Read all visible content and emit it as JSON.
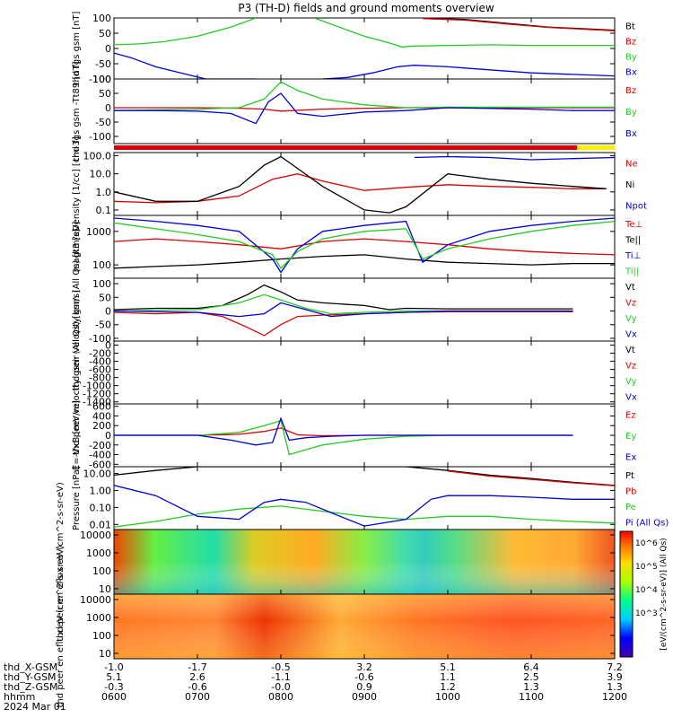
{
  "title": "P3 (TH-D) fields and ground moments overview",
  "date_label": "2024 Mar 01",
  "colors": {
    "black": "#000000",
    "red": "#dd0000",
    "green": "#22cc22",
    "blue": "#0000dd",
    "yellow": "#ffee00"
  },
  "chart_data": [
    {
      "type": "line",
      "ylabel": "thd fgs gsm [nT]",
      "ylim": [
        -100,
        100
      ],
      "ticks": [
        "100",
        "50",
        "0",
        "-50",
        "-100"
      ],
      "tick_values": [
        100,
        50,
        0,
        -50,
        -100
      ],
      "series": [
        {
          "name": "Bt",
          "color": "#000000",
          "x": [
            6.0,
            9.3,
            9.7,
            10.2,
            10.8,
            11.2,
            12.0
          ],
          "y": [
            null,
            null,
            100,
            95,
            80,
            70,
            60
          ]
        },
        {
          "name": "Bz",
          "color": "#dd0000",
          "x": [
            6.0,
            9.3,
            9.7,
            10.2,
            10.8,
            11.2,
            12.0
          ],
          "y": [
            null,
            null,
            98,
            93,
            78,
            69,
            58
          ]
        },
        {
          "name": "By",
          "color": "#22cc22",
          "x": [
            6.0,
            6.3,
            6.6,
            7.0,
            7.4,
            7.7,
            7.9,
            8.4,
            8.7,
            9.0,
            9.3,
            9.45,
            9.6,
            10.0,
            10.5,
            11.0,
            11.5,
            12.0
          ],
          "y": [
            12,
            15,
            22,
            40,
            70,
            100,
            null,
            100,
            70,
            40,
            18,
            5,
            8,
            10,
            12,
            10,
            10,
            10
          ]
        },
        {
          "name": "Bx",
          "color": "#0000dd",
          "x": [
            6.0,
            6.2,
            6.5,
            6.8,
            7.1,
            7.4,
            7.7,
            7.9,
            8.5,
            8.8,
            9.1,
            9.4,
            9.6,
            10.0,
            10.5,
            11.0,
            11.5,
            12.0
          ],
          "y": [
            -15,
            -30,
            -60,
            -80,
            -100,
            -100,
            -100,
            null,
            -100,
            -95,
            -80,
            -60,
            -55,
            -60,
            -70,
            -80,
            -85,
            -90
          ]
        }
      ],
      "labels": [
        "Bt",
        "Bz",
        "By",
        "Bx"
      ]
    },
    {
      "type": "line",
      "ylabel": "thd fgs gsm -Tt89 [nT]",
      "ylim": [
        -125,
        100
      ],
      "ticks": [
        "100",
        "50",
        "0",
        "-50",
        "-100"
      ],
      "tick_values": [
        100,
        50,
        0,
        -50,
        -100
      ],
      "series": [
        {
          "name": "Bz",
          "color": "#dd0000",
          "x": [
            6.0,
            7.0,
            7.5,
            7.8,
            8.0,
            8.5,
            9.0,
            9.5,
            10.0,
            11.0,
            12.0
          ],
          "y": [
            0,
            0,
            -2,
            -5,
            -12,
            -5,
            -2,
            0,
            0,
            0,
            0
          ]
        },
        {
          "name": "By",
          "color": "#22cc22",
          "x": [
            6.0,
            7.0,
            7.5,
            7.8,
            7.9,
            8.0,
            8.2,
            8.5,
            9.0,
            9.5,
            10.0,
            11.0,
            12.0
          ],
          "y": [
            -10,
            -5,
            0,
            30,
            60,
            90,
            60,
            30,
            10,
            0,
            2,
            2,
            2
          ]
        },
        {
          "name": "Bx",
          "color": "#0000dd",
          "x": [
            6.0,
            6.5,
            7.0,
            7.4,
            7.7,
            7.85,
            8.0,
            8.2,
            8.5,
            9.0,
            9.5,
            10.0,
            11.0,
            11.5,
            12.0
          ],
          "y": [
            -10,
            -10,
            -12,
            -20,
            -55,
            20,
            50,
            -20,
            -30,
            -15,
            -10,
            0,
            -5,
            -10,
            -10
          ]
        }
      ],
      "labels": [
        "Bz",
        "By",
        "Bx"
      ]
    },
    {
      "type": "line",
      "ylabel": "Density [1/cc] [cm-3]",
      "yscale": "log",
      "ylim": [
        0.05,
        150
      ],
      "ticks": [
        "100.0",
        "10.0",
        "1.0",
        "0.1"
      ],
      "tick_values": [
        100,
        10,
        1,
        0.1
      ],
      "series": [
        {
          "name": "Ne",
          "color": "#dd0000",
          "x": [
            6.0,
            6.5,
            7.0,
            7.5,
            7.9,
            8.2,
            8.5,
            9.0,
            9.5,
            10.0,
            10.5,
            11.0,
            11.5,
            11.9
          ],
          "y": [
            0.3,
            0.25,
            0.3,
            0.6,
            5,
            10,
            4,
            1.2,
            1.8,
            2.5,
            2.0,
            1.8,
            1.5,
            1.5
          ]
        },
        {
          "name": "Ni",
          "color": "#000000",
          "x": [
            6.0,
            6.5,
            7.0,
            7.5,
            7.8,
            8.0,
            8.2,
            8.5,
            9.0,
            9.3,
            9.5,
            10.0,
            10.5,
            11.0,
            11.5,
            11.9
          ],
          "y": [
            1,
            0.3,
            0.3,
            2,
            30,
            90,
            20,
            2,
            0.1,
            0.07,
            0.15,
            10,
            5,
            3,
            2,
            1.5
          ]
        },
        {
          "name": "Npot",
          "color": "#0000dd",
          "x": [
            9.6,
            10.0,
            10.5,
            11.0,
            11.5,
            12.0
          ],
          "y": [
            80,
            90,
            80,
            60,
            70,
            80
          ]
        }
      ],
      "labels": [
        "Ne",
        "Ni",
        "Npot"
      ]
    },
    {
      "type": "line",
      "ylabel": "magt3 [eV]",
      "yscale": "log",
      "ylim": [
        40,
        3000
      ],
      "ticks": [
        "1000",
        "100"
      ],
      "tick_values": [
        1000,
        100
      ],
      "series": [
        {
          "name": "Te⊥",
          "color": "#dd0000",
          "x": [
            6.0,
            6.5,
            7.0,
            7.5,
            8.0,
            8.5,
            9.0,
            9.5,
            10.0,
            10.5,
            11.0,
            11.5,
            12.0
          ],
          "y": [
            500,
            600,
            500,
            400,
            300,
            500,
            600,
            500,
            400,
            300,
            250,
            220,
            200
          ]
        },
        {
          "name": "Te||",
          "color": "#000000",
          "x": [
            6.0,
            6.5,
            7.0,
            7.5,
            8.0,
            8.5,
            9.0,
            9.5,
            10.0,
            10.5,
            11.0,
            11.5,
            12.0
          ],
          "y": [
            80,
            90,
            100,
            120,
            150,
            180,
            200,
            150,
            120,
            110,
            100,
            110,
            110
          ]
        },
        {
          "name": "Ti⊥",
          "color": "#0000dd",
          "x": [
            6.0,
            6.5,
            7.0,
            7.5,
            7.9,
            8.0,
            8.2,
            8.5,
            9.0,
            9.5,
            9.7,
            10.0,
            10.5,
            11.0,
            11.5,
            12.0
          ],
          "y": [
            2500,
            2000,
            1500,
            1000,
            150,
            60,
            300,
            1000,
            1500,
            2000,
            120,
            400,
            1000,
            1500,
            2000,
            2500
          ]
        },
        {
          "name": "Ti||",
          "color": "#22cc22",
          "x": [
            6.0,
            6.5,
            7.0,
            7.5,
            7.9,
            8.0,
            8.2,
            8.5,
            9.0,
            9.5,
            9.7,
            10.0,
            10.5,
            11.0,
            11.5,
            12.0
          ],
          "y": [
            1800,
            1200,
            800,
            500,
            200,
            80,
            250,
            600,
            1000,
            1200,
            150,
            300,
            600,
            1000,
            1500,
            2000
          ]
        }
      ],
      "labels": [
        "Te⊥",
        "Te||",
        "Ti⊥",
        "Ti||"
      ]
    },
    {
      "type": "line",
      "ylabel": "thd peir velocity gsm (All Qs) [km/s]",
      "ylim": [
        -110,
        120
      ],
      "ticks": [
        "100",
        "50",
        "0",
        "-50",
        "-100"
      ],
      "tick_values": [
        100,
        50,
        0,
        -50,
        -100
      ],
      "series": [
        {
          "name": "Vt",
          "color": "#000000",
          "x": [
            6.0,
            6.5,
            7.0,
            7.3,
            7.6,
            7.8,
            8.0,
            8.2,
            8.5,
            9.0,
            9.3,
            9.5,
            10.0,
            10.5,
            11.0,
            11.5
          ],
          "y": [
            5,
            10,
            10,
            20,
            60,
            95,
            70,
            40,
            30,
            20,
            5,
            10,
            8,
            8,
            8,
            8
          ]
        },
        {
          "name": "Vz",
          "color": "#dd0000",
          "x": [
            6.0,
            6.5,
            7.0,
            7.3,
            7.6,
            7.8,
            8.0,
            8.2,
            8.5,
            9.0,
            9.5,
            10.0,
            10.5,
            11.0,
            11.5
          ],
          "y": [
            -5,
            -10,
            -5,
            -20,
            -60,
            -90,
            -50,
            -20,
            -15,
            -10,
            -5,
            -3,
            -3,
            -3,
            -3
          ]
        },
        {
          "name": "Vy",
          "color": "#22cc22",
          "x": [
            6.0,
            7.0,
            7.5,
            7.8,
            8.0,
            8.3,
            8.6,
            9.0,
            9.5,
            10.0,
            11.5
          ],
          "y": [
            0,
            5,
            30,
            60,
            40,
            10,
            -10,
            -5,
            0,
            0,
            0
          ]
        },
        {
          "name": "Vx",
          "color": "#0000dd",
          "x": [
            6.0,
            7.0,
            7.5,
            7.8,
            8.0,
            8.3,
            8.6,
            9.0,
            9.5,
            10.0,
            11.5
          ],
          "y": [
            0,
            -5,
            -20,
            -10,
            30,
            5,
            -20,
            -10,
            -5,
            0,
            0
          ]
        }
      ],
      "labels": [
        "Vt",
        "Vz",
        "Vy",
        "Vx"
      ]
    },
    {
      "type": "line",
      "ylabel": "thd peer velocity gsm (All Qs) [km/s]",
      "ylim": [
        -1450,
        100
      ],
      "ticks": [
        "0",
        "-200",
        "-400",
        "-600",
        "-800",
        "-1000",
        "-1200",
        "-1400"
      ],
      "tick_values": [
        0,
        -200,
        -400,
        -600,
        -800,
        -1000,
        -1200,
        -1400
      ],
      "series": [],
      "labels": [
        "Vt",
        "Vz",
        "Vy",
        "Vx"
      ]
    },
    {
      "type": "line",
      "ylabel": "E=-VxB [mV/m]",
      "ylim": [
        -650,
        650
      ],
      "ticks": [
        "600",
        "400",
        "200",
        "0",
        "-200",
        "-400",
        "-600"
      ],
      "tick_values": [
        600,
        400,
        200,
        0,
        -200,
        -400,
        -600
      ],
      "series": [
        {
          "name": "Ez",
          "color": "#dd0000",
          "x": [
            6.0,
            7.0,
            7.5,
            7.8,
            8.0,
            8.2,
            8.5,
            9.0,
            9.5,
            10.0,
            11.5
          ],
          "y": [
            0,
            0,
            20,
            80,
            150,
            10,
            -10,
            0,
            0,
            0,
            0
          ]
        },
        {
          "name": "Ey",
          "color": "#22cc22",
          "x": [
            6.0,
            7.0,
            7.5,
            7.8,
            8.0,
            8.1,
            8.2,
            8.5,
            9.0,
            9.5,
            10.0,
            11.5
          ],
          "y": [
            0,
            0,
            60,
            200,
            300,
            -400,
            -350,
            -200,
            -80,
            -20,
            0,
            0
          ]
        },
        {
          "name": "Ex",
          "color": "#0000dd",
          "x": [
            6.0,
            7.0,
            7.4,
            7.7,
            7.9,
            8.0,
            8.1,
            8.3,
            8.6,
            9.0,
            9.5,
            10.0,
            11.5
          ],
          "y": [
            0,
            0,
            -100,
            -200,
            -150,
            350,
            -100,
            -50,
            -20,
            0,
            0,
            0,
            0
          ]
        }
      ],
      "labels": [
        "Ez",
        "Ey",
        "Ex"
      ]
    },
    {
      "type": "line",
      "ylabel": "Pressure [nPa]",
      "yscale": "log",
      "ylim": [
        0.005,
        25
      ],
      "ticks": [
        "10.00",
        "1.00",
        "0.10",
        "0.01"
      ],
      "tick_values": [
        10,
        1,
        0.1,
        0.01
      ],
      "series": [
        {
          "name": "Pt",
          "color": "#000000",
          "x": [
            6.0,
            6.5,
            7.0,
            7.5,
            8.0,
            8.5,
            9.0,
            9.5,
            10.0,
            10.5,
            11.0,
            11.5,
            12.0
          ],
          "y": [
            8,
            15,
            25,
            25,
            25,
            25,
            25,
            25,
            15,
            8,
            5,
            3,
            2
          ]
        },
        {
          "name": "Pb",
          "color": "#dd0000",
          "x": [
            6.0,
            6.5,
            7.0,
            7.5,
            8.0,
            8.5,
            9.0,
            9.5,
            10.0,
            10.5,
            11.0,
            11.5,
            12.0
          ],
          "y": [
            null,
            null,
            null,
            null,
            null,
            null,
            null,
            null,
            14,
            7,
            4.5,
            2.8,
            1.9
          ]
        },
        {
          "name": "Pe",
          "color": "#22cc22",
          "x": [
            6.0,
            6.5,
            7.0,
            7.5,
            8.0,
            8.5,
            9.0,
            9.5,
            10.0,
            10.5,
            11.0,
            11.5,
            12.0
          ],
          "y": [
            0.007,
            0.015,
            0.04,
            0.08,
            0.12,
            0.06,
            0.03,
            0.02,
            0.03,
            0.03,
            0.02,
            0.015,
            0.012
          ]
        },
        {
          "name": "Pi",
          "color": "#0000dd",
          "x": [
            6.0,
            6.5,
            7.0,
            7.5,
            7.8,
            8.0,
            8.3,
            8.6,
            9.0,
            9.5,
            9.8,
            10.0,
            10.5,
            11.0,
            11.5,
            12.0
          ],
          "y": [
            2,
            0.5,
            0.03,
            0.02,
            0.2,
            0.3,
            0.2,
            0.05,
            0.008,
            0.02,
            0.3,
            0.5,
            0.5,
            0.4,
            0.3,
            0.3
          ]
        }
      ],
      "labels": [
        "Pt",
        "Pb",
        "Pe",
        "Pi (All Qs)"
      ]
    },
    {
      "type": "heatmap",
      "ylabel": "thd peir en eflux eV (cm^2-s-sr-eV)",
      "yscale": "log",
      "ylim": [
        5,
        20000
      ],
      "ticks": [
        "10000",
        "1000",
        "100",
        "10"
      ],
      "tick_values": [
        10000,
        1000,
        100,
        10
      ]
    },
    {
      "type": "heatmap",
      "ylabel": "thd peer en eflux eV (cm^2-s-sr-eV)",
      "yscale": "log",
      "ylim": [
        5,
        20000
      ],
      "ticks": [
        "10000",
        "1000",
        "100",
        "10"
      ],
      "tick_values": [
        10000,
        1000,
        100,
        10
      ]
    }
  ],
  "colorbar": {
    "ticks": [
      "10^6",
      "10^5",
      "10^4",
      "10^3"
    ],
    "label": "[eV/(cm^2-s-sr-eV)] (All Qs)"
  },
  "xaxis": {
    "rows": [
      {
        "label": "thd_X-GSM",
        "values": [
          "-1.0",
          "-1.7",
          "-0.5",
          "3.2",
          "5.1",
          "6.4",
          "7.2"
        ]
      },
      {
        "label": "thd_Y-GSM",
        "values": [
          "5.1",
          "2.6",
          "-1.1",
          "-0.6",
          "1.1",
          "2.5",
          "3.9"
        ]
      },
      {
        "label": "thd_Z-GSM",
        "values": [
          "-0.3",
          "-0.6",
          "-0.0",
          "0.9",
          "1.2",
          "1.3",
          "1.3"
        ]
      },
      {
        "label": "hhmm",
        "values": [
          "0600",
          "0700",
          "0800",
          "0900",
          "1000",
          "1100",
          "1200"
        ]
      }
    ]
  }
}
